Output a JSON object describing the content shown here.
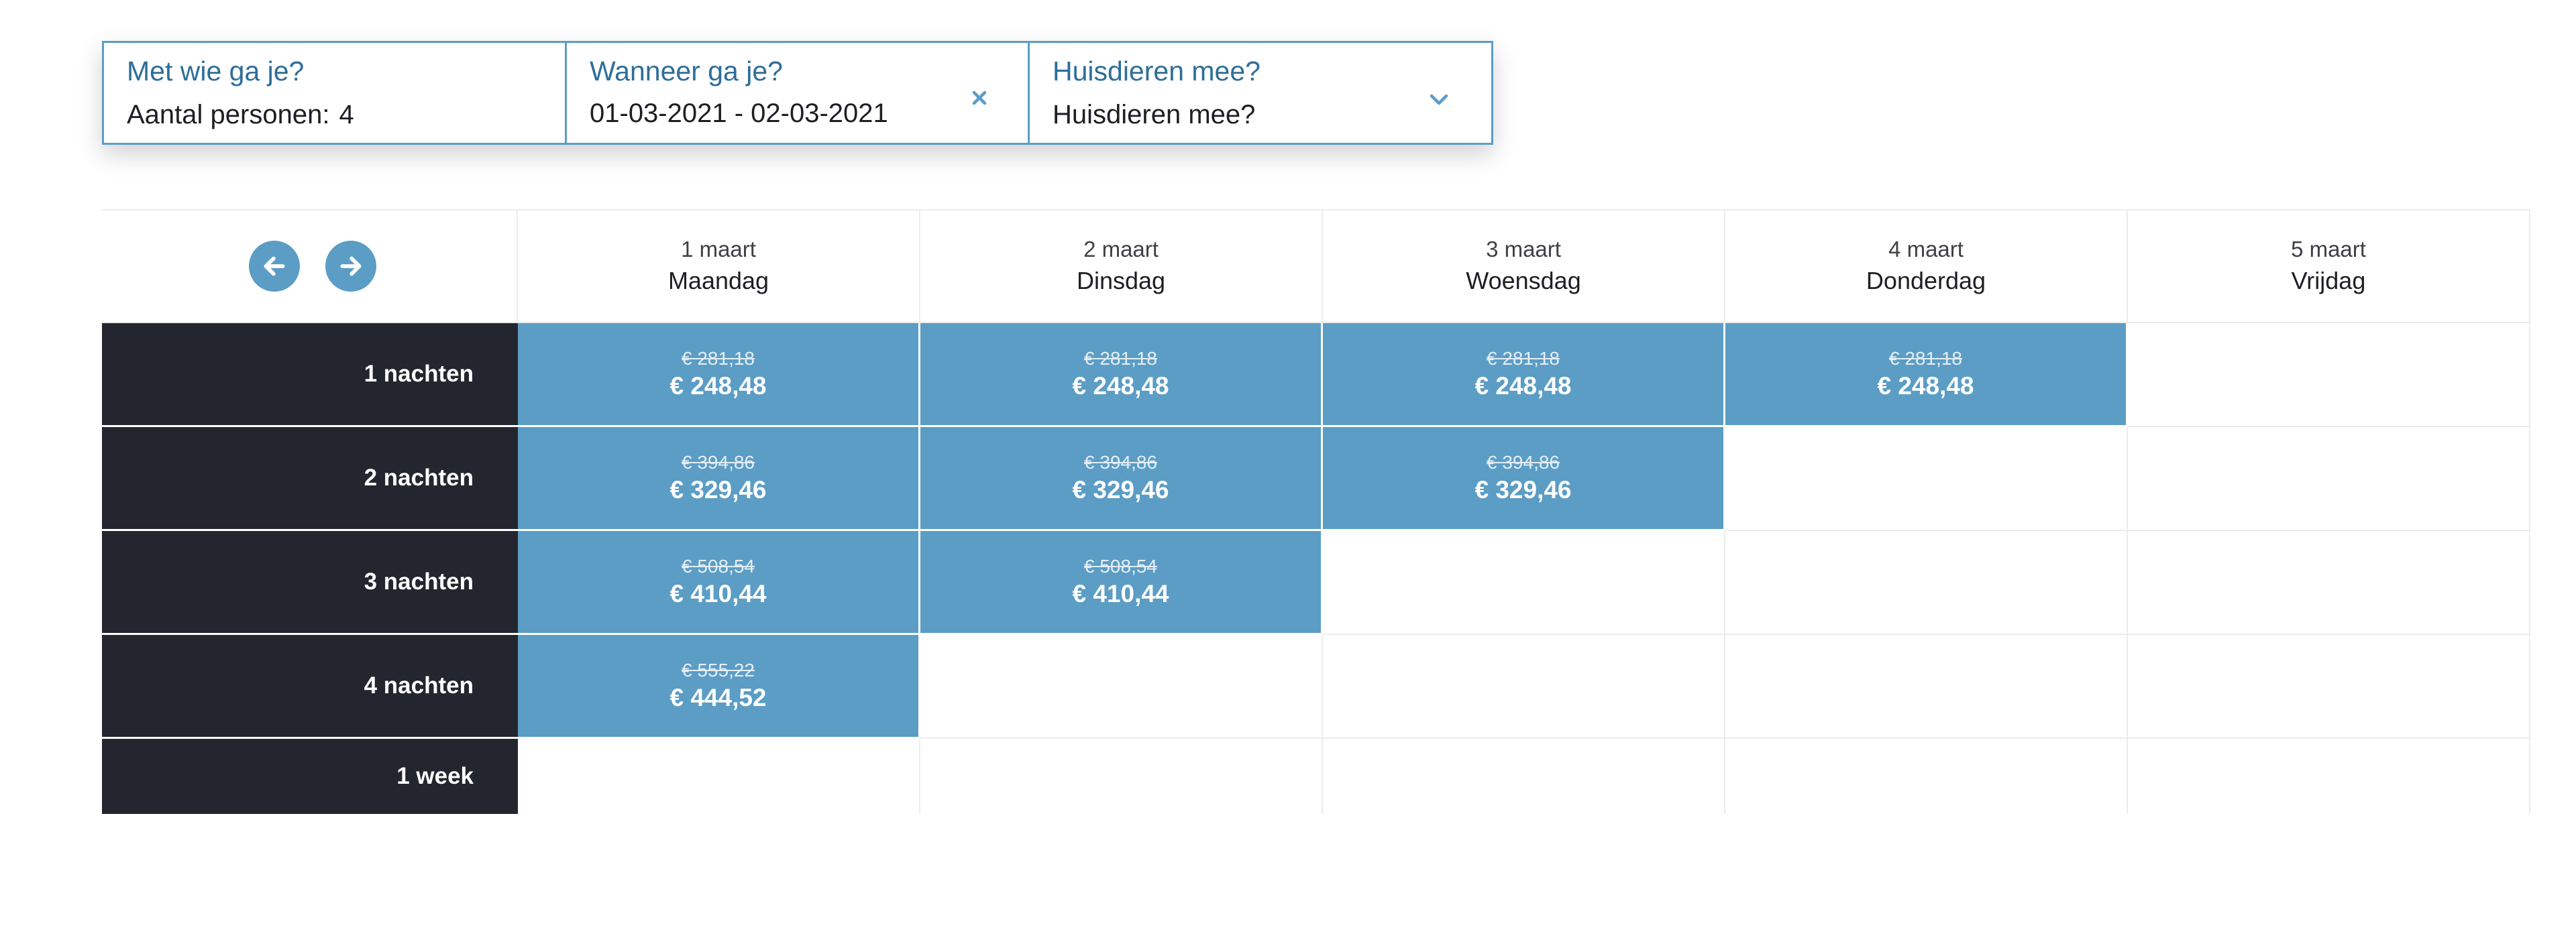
{
  "filters": {
    "persons": {
      "label": "Met wie ga je?",
      "value_prefix": "Aantal personen:",
      "count": "4"
    },
    "dates": {
      "label": "Wanneer ga je?",
      "value": "01-03-2021 - 02-03-2021",
      "clear_icon": "close-icon"
    },
    "pets": {
      "label": "Huisdieren mee?",
      "value": "Huisdieren mee?",
      "icon": "chevron-down-icon"
    }
  },
  "grid": {
    "nav": {
      "prev_icon": "arrow-left-icon",
      "next_icon": "arrow-right-icon"
    },
    "columns": [
      {
        "date": "1 maart",
        "weekday": "Maandag"
      },
      {
        "date": "2 maart",
        "weekday": "Dinsdag"
      },
      {
        "date": "3 maart",
        "weekday": "Woensdag"
      },
      {
        "date": "4 maart",
        "weekday": "Donderdag"
      },
      {
        "date": "5 maart",
        "weekday": "Vrijdag"
      }
    ],
    "rows": [
      {
        "label": "1 nachten",
        "cells": [
          {
            "old": "€ 281,18",
            "new": "€ 248,48"
          },
          {
            "old": "€ 281,18",
            "new": "€ 248,48"
          },
          {
            "old": "€ 281,18",
            "new": "€ 248,48"
          },
          {
            "old": "€ 281,18",
            "new": "€ 248,48"
          },
          null
        ]
      },
      {
        "label": "2 nachten",
        "cells": [
          {
            "old": "€ 394,86",
            "new": "€ 329,46"
          },
          {
            "old": "€ 394,86",
            "new": "€ 329,46"
          },
          {
            "old": "€ 394,86",
            "new": "€ 329,46"
          },
          null,
          null
        ]
      },
      {
        "label": "3 nachten",
        "cells": [
          {
            "old": "€ 508,54",
            "new": "€ 410,44"
          },
          {
            "old": "€ 508,54",
            "new": "€ 410,44"
          },
          null,
          null,
          null
        ]
      },
      {
        "label": "4 nachten",
        "cells": [
          {
            "old": "€ 555,22",
            "new": "€ 444,52"
          },
          null,
          null,
          null,
          null
        ]
      },
      {
        "label": "1 week",
        "cells": [
          null,
          null,
          null,
          null,
          null
        ]
      }
    ]
  },
  "colors": {
    "accent": "#5b9dc5",
    "label_blue": "#2d6e99",
    "row_header_bg": "#23262e",
    "grid_line": "#ececec"
  }
}
